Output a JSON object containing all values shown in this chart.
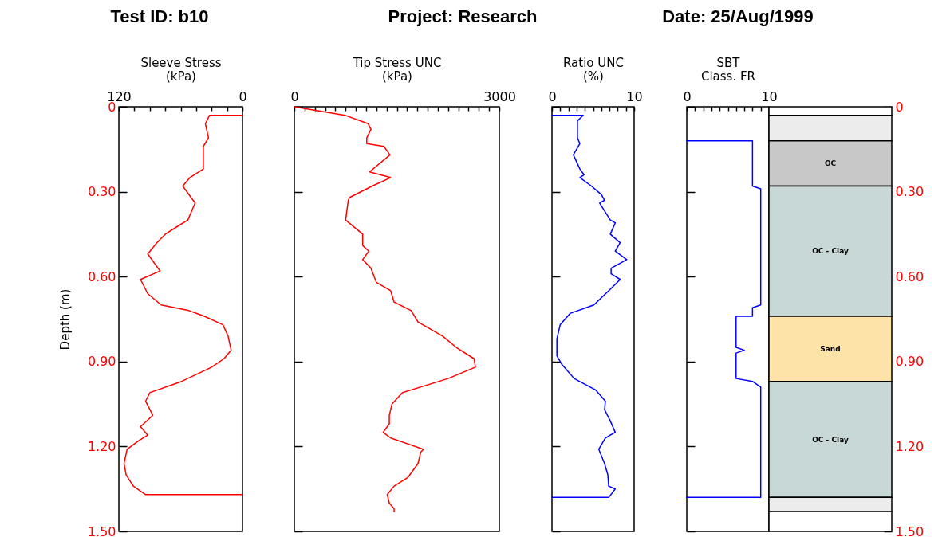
{
  "chart_data": [
    {
      "type": "line",
      "orientation": "horizontal",
      "xlabel": "Sleeve Stress\n(kPa)",
      "ylabel": "Depth (m)",
      "annotations": [
        "Test ID: b10",
        "Project: Research",
        "Date: 25/Aug/1999"
      ],
      "x": [
        0.03,
        0.03,
        0.06,
        0.11,
        0.14,
        0.22,
        0.25,
        0.28,
        0.34,
        0.4,
        0.42,
        0.45,
        0.48,
        0.52,
        0.58,
        0.61,
        0.66,
        0.7,
        0.72,
        0.74,
        0.77,
        0.81,
        0.86,
        0.89,
        0.92,
        0.97,
        1.01,
        1.04,
        1.09,
        1.13,
        1.16,
        1.18,
        1.21,
        1.26,
        1.3,
        1.34,
        1.37,
        1.37
      ],
      "series": [
        {
          "color": "#ff0000",
          "values": [
            0,
            32,
            36,
            33,
            38,
            38,
            51,
            58,
            46,
            53,
            62,
            75,
            83,
            92,
            80,
            99,
            92,
            79,
            52,
            37,
            19,
            14,
            11,
            18,
            30,
            59,
            90,
            94,
            87,
            99,
            92,
            101,
            112,
            115,
            113,
            106,
            94,
            0
          ]
        }
      ],
      "xlim": [
        120,
        0
      ],
      "xticks": [
        120,
        {
          "value": 105,
          "label": null
        },
        {
          "value": 90,
          "label": null
        },
        {
          "value": 75,
          "label": null
        },
        {
          "value": 60,
          "label": null
        },
        {
          "value": 45,
          "label": null
        },
        {
          "value": 30,
          "label": null
        },
        {
          "value": 15,
          "label": null
        },
        0
      ],
      "ylim": [
        1.5,
        0
      ],
      "yticks": [
        {
          "value": 0,
          "label": "0"
        },
        {
          "value": 0.3,
          "label": "0.30"
        },
        {
          "value": 0.6,
          "label": "0.60"
        },
        {
          "value": 0.9,
          "label": "0.90"
        },
        {
          "value": 1.2,
          "label": "1.20"
        },
        {
          "value": 1.5,
          "label": "1.50"
        }
      ]
    },
    {
      "type": "line",
      "orientation": "horizontal",
      "xlabel": "Tip Stress UNC\n(kPa)",
      "tick_labels": "x",
      "x": [
        0,
        0.03,
        0.06,
        0.08,
        0.11,
        0.13,
        0.14,
        0.17,
        0.23,
        0.25,
        0.28,
        0.32,
        0.33,
        0.4,
        0.45,
        0.49,
        0.51,
        0.54,
        0.57,
        0.62,
        0.65,
        0.69,
        0.72,
        0.76,
        0.81,
        0.85,
        0.89,
        0.92,
        0.96,
        1.01,
        1.05,
        1.09,
        1.12,
        1.15,
        1.17,
        1.21,
        1.22,
        1.26,
        1.31,
        1.34,
        1.37,
        1.4,
        1.42,
        1.43
      ],
      "series": [
        {
          "color": "#ff0000",
          "values": [
            0,
            740,
            1080,
            1120,
            1060,
            1060,
            1310,
            1400,
            1100,
            1410,
            1140,
            810,
            790,
            750,
            1000,
            1000,
            1090,
            1000,
            1120,
            1200,
            1410,
            1460,
            1710,
            1810,
            2170,
            2370,
            2630,
            2650,
            2250,
            1580,
            1430,
            1390,
            1390,
            1300,
            1410,
            1890,
            1850,
            1810,
            1660,
            1460,
            1360,
            1390,
            1460,
            1460
          ]
        }
      ],
      "xlim": [
        0,
        3000
      ],
      "xticks": [
        0,
        {
          "value": 150,
          "label": null
        },
        {
          "value": 300,
          "label": null
        },
        {
          "value": 450,
          "label": null
        },
        {
          "value": 600,
          "label": null
        },
        {
          "value": 750,
          "label": null
        },
        {
          "value": 900,
          "label": null
        },
        {
          "value": 1050,
          "label": null
        },
        {
          "value": 1200,
          "label": null
        },
        {
          "value": 1350,
          "label": null
        },
        {
          "value": 1500,
          "label": null
        },
        {
          "value": 1650,
          "label": null
        },
        {
          "value": 1800,
          "label": null
        },
        {
          "value": 1950,
          "label": null
        },
        {
          "value": 2100,
          "label": null
        },
        {
          "value": 2250,
          "label": null
        },
        {
          "value": 2400,
          "label": null
        },
        {
          "value": 2550,
          "label": null
        },
        {
          "value": 2700,
          "label": null
        },
        {
          "value": 2850,
          "label": null
        },
        3000
      ],
      "ylim": [
        1.5,
        0
      ],
      "yticks": [
        0,
        0.3,
        0.6,
        0.9,
        1.2,
        1.5
      ]
    },
    {
      "type": "line",
      "orientation": "horizontal",
      "xlabel": "Ratio UNC\n(%)",
      "tick_labels": "x",
      "x": [
        0.03,
        0.03,
        0.05,
        0.11,
        0.13,
        0.17,
        0.22,
        0.24,
        0.25,
        0.28,
        0.31,
        0.33,
        0.34,
        0.4,
        0.41,
        0.45,
        0.48,
        0.51,
        0.54,
        0.57,
        0.59,
        0.61,
        0.65,
        0.7,
        0.73,
        0.77,
        0.82,
        0.88,
        0.91,
        0.96,
        1.0,
        1.04,
        1.07,
        1.11,
        1.15,
        1.17,
        1.21,
        1.26,
        1.3,
        1.34,
        1.35,
        1.38,
        1.38
      ],
      "series": [
        {
          "color": "#0000ff",
          "values": [
            0,
            3.8,
            3.1,
            3.1,
            3.4,
            2.6,
            3.4,
            3.9,
            3.4,
            4.8,
            6.0,
            6.4,
            5.8,
            7.1,
            7.7,
            7.1,
            8.3,
            7.7,
            9.1,
            7.2,
            7.2,
            8.3,
            6.9,
            5.1,
            2.2,
            1.0,
            0.6,
            0.6,
            1.2,
            2.7,
            5.3,
            6.5,
            6.4,
            7.1,
            7.7,
            6.5,
            5.7,
            6.4,
            6.8,
            6.9,
            7.7,
            6.9,
            0
          ]
        }
      ],
      "xlim": [
        0,
        10
      ],
      "xticks": [
        0,
        {
          "value": 1,
          "label": null
        },
        {
          "value": 2,
          "label": null
        },
        {
          "value": 3,
          "label": null
        },
        {
          "value": 4,
          "label": null
        },
        {
          "value": 5,
          "label": null
        },
        {
          "value": 6,
          "label": null
        },
        {
          "value": 7,
          "label": null
        },
        {
          "value": 8,
          "label": null
        },
        {
          "value": 9,
          "label": null
        },
        10
      ],
      "ylim": [
        1.5,
        0
      ],
      "yticks": [
        0,
        0.3,
        0.6,
        0.9,
        1.2,
        1.5
      ]
    },
    {
      "type": "line",
      "orientation": "horizontal",
      "xlabel": "SBT\nClass. FR",
      "tick_labels": "x",
      "x": [
        0.12,
        0.12,
        0.28,
        0.29,
        0.7,
        0.71,
        0.74,
        0.74,
        0.85,
        0.86,
        0.87,
        0.96,
        0.97,
        0.99,
        1.38,
        1.38
      ],
      "series": [
        {
          "color": "#0000ff",
          "values": [
            0,
            8,
            8,
            9,
            9,
            8,
            8,
            6,
            6,
            7,
            6,
            6,
            8,
            9,
            9,
            0
          ]
        }
      ],
      "xlim": [
        0,
        10
      ],
      "xticks": [
        0,
        {
          "value": 1,
          "label": null
        },
        {
          "value": 2,
          "label": null
        },
        {
          "value": 3,
          "label": null
        },
        {
          "value": 4,
          "label": null
        },
        {
          "value": 5,
          "label": null
        },
        {
          "value": 6,
          "label": null
        },
        {
          "value": 7,
          "label": null
        },
        {
          "value": 8,
          "label": null
        },
        {
          "value": 9,
          "label": null
        },
        10
      ],
      "ylim": [
        1.5,
        0
      ],
      "yticks": [
        0,
        0.3,
        0.6,
        0.9,
        1.2,
        1.5
      ]
    },
    {
      "type": "bar",
      "stacked": true,
      "categories": [
        null
      ],
      "ylim": [
        1.5,
        0
      ],
      "yticks": [
        {
          "value": 0,
          "label": "0"
        },
        {
          "value": 0.3,
          "label": "0.30"
        },
        {
          "value": 0.6,
          "label": "0.60"
        },
        {
          "value": 0.9,
          "label": "0.90"
        },
        {
          "value": 1.2,
          "label": "1.20"
        },
        {
          "value": 1.5,
          "label": "1.50"
        }
      ],
      "series": [
        {
          "color": "#ffffff",
          "values": [
            0.03
          ]
        },
        {
          "color": "#ececec",
          "values": [
            0.09
          ]
        },
        {
          "name": "OC",
          "color": "#c8c8c8",
          "values": [
            0.16
          ]
        },
        {
          "name": "OC - Clay",
          "color": "#c8d8d6",
          "values": [
            0.46
          ]
        },
        {
          "name": "Sand",
          "color": "#fde3a7",
          "values": [
            0.23
          ]
        },
        {
          "name": "OC - Clay",
          "color": "#c8d8d6",
          "values": [
            0.41
          ]
        },
        {
          "color": "#ececec",
          "values": [
            0.05
          ]
        },
        {
          "color": "#ffffff",
          "values": [
            0.07
          ]
        }
      ]
    }
  ]
}
